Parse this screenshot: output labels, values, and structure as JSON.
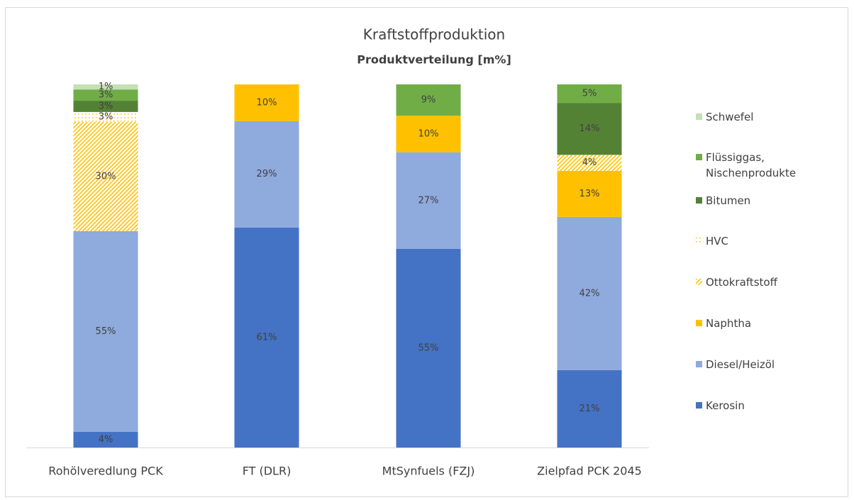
{
  "chart_data": {
    "type": "stacked_bar",
    "title": "Kraftstoffproduktion",
    "subtitle": "Produktverteilung [m%]",
    "categories": [
      "Rohölveredlung PCK",
      "FT (DLR)",
      "MtSynfuels (FZJ)",
      "Zielpfad PCK 2045"
    ],
    "ylim": [
      0,
      100
    ],
    "series": [
      {
        "name": "Kerosin",
        "color": "#4472c4",
        "values": [
          4.3,
          60.6,
          54.7,
          21.3
        ],
        "value_labels": [
          "4%",
          "61%",
          "55%",
          "21%"
        ]
      },
      {
        "name": "Diesel/Heizöl",
        "color": "#8faadc",
        "values": [
          55.3,
          29.3,
          26.6,
          42.2
        ],
        "value_labels": [
          "55%",
          "29%",
          "27%",
          "42%"
        ]
      },
      {
        "name": "Naphtha",
        "color": "#ffc000",
        "values": [
          null,
          10.1,
          10.1,
          12.7
        ],
        "value_labels": [
          null,
          "10%",
          "10%",
          "13%"
        ]
      },
      {
        "name": "Ottokraftstoff",
        "color": "#ffc000",
        "pattern": "diagonal",
        "values": [
          30.1,
          null,
          null,
          4.4
        ],
        "value_labels": [
          "30%",
          null,
          null,
          "4%"
        ]
      },
      {
        "name": "HVC",
        "color": "#ffc000",
        "pattern": "dots",
        "values": [
          2.7,
          null,
          null,
          null
        ],
        "value_labels": [
          "3%",
          null,
          null,
          null
        ]
      },
      {
        "name": "Bitumen",
        "color": "#548235",
        "values": [
          3.1,
          null,
          null,
          14.3
        ],
        "value_labels": [
          "3%",
          null,
          null,
          "14%"
        ]
      },
      {
        "name": "Flüssiggas, Nischenprodukte",
        "color": "#70ad47",
        "values": [
          3.1,
          null,
          8.6,
          5.1
        ],
        "value_labels": [
          "3%",
          null,
          "9%",
          "5%"
        ]
      },
      {
        "name": "Schwefel",
        "color": "#c5e0b4",
        "values": [
          1.4,
          null,
          null,
          null
        ],
        "value_labels": [
          "1%",
          null,
          null,
          null
        ]
      }
    ]
  }
}
